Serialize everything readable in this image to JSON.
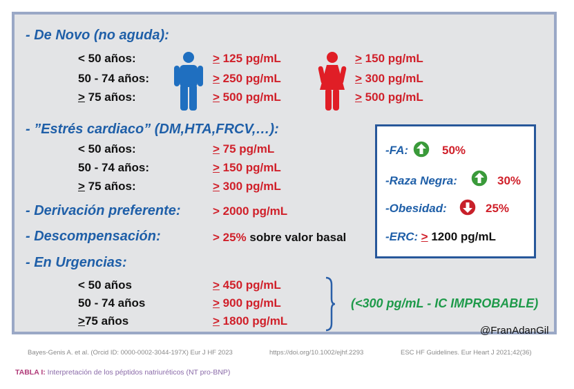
{
  "sections": {
    "de_novo": {
      "title": "- De Novo (no aguda):",
      "rows": [
        {
          "age_prefix": "",
          "age": "< 50 años:",
          "male_ge": ">",
          "male": " 125 pg/mL",
          "female_ge": ">",
          "female": " 150 pg/mL"
        },
        {
          "age_prefix": "",
          "age": "50 - 74 años:",
          "male_ge": ">",
          "male": " 250 pg/mL",
          "female_ge": ">",
          "female": " 300 pg/mL"
        },
        {
          "age_prefix": ">",
          "age": " 75 años:",
          "male_ge": ">",
          "male": " 500 pg/mL",
          "female_ge": ">",
          "female": " 500 pg/mL"
        }
      ]
    },
    "estres": {
      "title": "- ”Estrés cardiaco” (DM,HTA,FRCV,…):",
      "rows": [
        {
          "age_prefix": "",
          "age": "< 50 años:",
          "ge": ">",
          "value": " 75 pg/mL"
        },
        {
          "age_prefix": "",
          "age": "50 - 74 años:",
          "ge": ">",
          "value": " 150 pg/mL"
        },
        {
          "age_prefix": ">",
          "age": " 75 años:",
          "ge": ">",
          "value": " 300 pg/mL"
        }
      ]
    },
    "derivacion": {
      "title": "- Derivación preferente:",
      "value": "> 2000 pg/mL"
    },
    "descompensacion": {
      "title": "- Descompensación:",
      "value": "> 25%",
      "suffix": " sobre valor basal"
    },
    "urgencias": {
      "title": "- En Urgencias:",
      "rows": [
        {
          "age_prefix": "",
          "age": "< 50 años",
          "ge": ">",
          "value": " 450 pg/mL"
        },
        {
          "age_prefix": "",
          "age": "50 - 74 años",
          "ge": ">",
          "value": " 900 pg/mL"
        },
        {
          "age_prefix": ">",
          "age": "75 años",
          "ge": ">",
          "value": " 1800 pg/mL"
        }
      ],
      "note": "(<300 pg/mL - IC IMPROBABLE)"
    }
  },
  "infobox": {
    "fa": {
      "label": "-FA:",
      "value": "50%",
      "icon": "arrow-up-circle-icon"
    },
    "raza": {
      "label": "-Raza Negra:",
      "value": "30%",
      "icon": "arrow-up-circle-icon"
    },
    "obesidad": {
      "label": "-Obesidad:",
      "value": "25%",
      "icon": "arrow-down-circle-icon"
    },
    "erc": {
      "label": "-ERC:",
      "ge": ">",
      "value": " 1200 pg/mL"
    }
  },
  "handle": "@FranAdanGil",
  "citations": {
    "left": "Bayes-Genis A. et al. (Orcid ID: 0000-0002-3044-197X) Eur J HF 2023",
    "middle": "https://doi.org/10.1002/ejhf.2293",
    "right": "ESC HF Guidelines. Eur Heart J 2021;42(36)"
  },
  "caption": {
    "label": "TABLA I:",
    "text": " Interpretación de los péptidos natriuréticos (NT pro-BNP)"
  },
  "colors": {
    "male": "#1f6fc0",
    "female": "#e01e26",
    "up": "#3a9a3a",
    "down": "#c8202a",
    "section": "#1f5fa8"
  }
}
